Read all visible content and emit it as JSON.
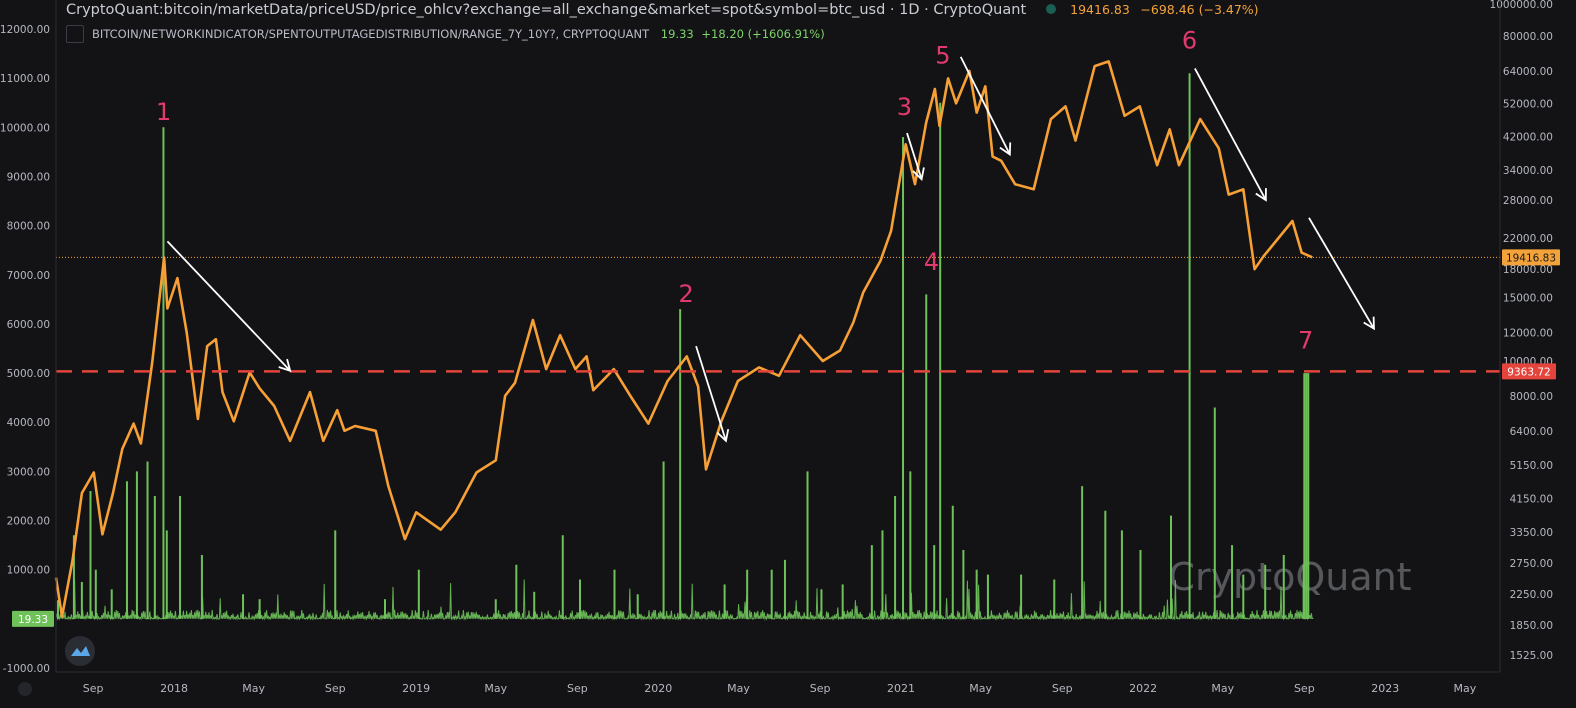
{
  "header": {
    "title": "CryptoQuant:bitcoin/marketData/priceUSD/price_ohlcv?exchange=all_exchange&market=spot&symbol=btc_usd · 1D · CryptoQuant",
    "last_price": "19416.83",
    "change": "−698.46 (−3.47%)",
    "indicator_name": "BITCOIN/NETWORKINDICATOR/SPENTOUTPUTAGEDISTRIBUTION/RANGE_7Y_10Y?, CRYPTOQUANT",
    "indicator_value": "19.33",
    "indicator_change": "+18.20 (+1606.91%)"
  },
  "watermark": "CryptoQuant",
  "colors": {
    "background": "#131316",
    "price_line": "#f7a035",
    "indicator": "#6fc25a",
    "annotation": "#e23a6c",
    "dashed_level": "#e5443c",
    "arrows": "#ffffff",
    "dotted_price": "#f4a33a"
  },
  "chart_data": {
    "type": "line",
    "title": "",
    "x_axis": {
      "tick_labels": [
        "Sep",
        "2018",
        "May",
        "Sep",
        "2019",
        "May",
        "Sep",
        "2020",
        "May",
        "Sep",
        "2021",
        "May",
        "Sep",
        "2022",
        "May",
        "Sep",
        "2023",
        "May"
      ],
      "tick_dates": [
        "2017-09-01",
        "2018-01-01",
        "2018-05-01",
        "2018-09-01",
        "2019-01-01",
        "2019-05-01",
        "2019-09-01",
        "2020-01-01",
        "2020-05-01",
        "2020-09-01",
        "2021-01-01",
        "2021-05-01",
        "2021-09-01",
        "2022-01-01",
        "2022-05-01",
        "2022-09-01",
        "2023-01-01",
        "2023-05-01"
      ],
      "range": [
        "2017-07-07",
        "2023-06-23"
      ]
    },
    "left_axis": {
      "ticks": [
        "12000.00",
        "11000.00",
        "10000.00",
        "9000.00",
        "8000.00",
        "7000.00",
        "6000.00",
        "5000.00",
        "4000.00",
        "3000.00",
        "2000.00",
        "1000.00",
        "-1000.00"
      ],
      "range": [
        -1000,
        12000
      ],
      "current_label": "19.33"
    },
    "right_axis": {
      "scale": "log",
      "ticks": [
        "1000000.00",
        "80000.00",
        "64000.00",
        "52000.00",
        "42000.00",
        "34000.00",
        "28000.00",
        "22000.00",
        "18000.00",
        "15000.00",
        "12000.00",
        "10000.00",
        "8000.00",
        "6400.00",
        "5150.00",
        "4150.00",
        "3350.00",
        "2750.00",
        "2250.00",
        "1850.00",
        "1525.00"
      ],
      "price_label": "19416.83",
      "level_label": "9363.72"
    },
    "series": [
      {
        "name": "btc_usd",
        "axis": "right",
        "points": [
          [
            "2017-07-07",
            2500
          ],
          [
            "2017-07-16",
            1950
          ],
          [
            "2017-08-01",
            2800
          ],
          [
            "2017-08-15",
            4300
          ],
          [
            "2017-09-02",
            4900
          ],
          [
            "2017-09-15",
            3300
          ],
          [
            "2017-10-01",
            4300
          ],
          [
            "2017-10-15",
            5700
          ],
          [
            "2017-11-01",
            6700
          ],
          [
            "2017-11-12",
            5900
          ],
          [
            "2017-11-29",
            9900
          ],
          [
            "2017-12-17",
            19400
          ],
          [
            "2017-12-22",
            14000
          ],
          [
            "2018-01-06",
            17000
          ],
          [
            "2018-01-20",
            12000
          ],
          [
            "2018-02-06",
            6900
          ],
          [
            "2018-02-20",
            11000
          ],
          [
            "2018-03-05",
            11500
          ],
          [
            "2018-03-15",
            8200
          ],
          [
            "2018-04-01",
            6800
          ],
          [
            "2018-04-25",
            9300
          ],
          [
            "2018-05-10",
            8400
          ],
          [
            "2018-06-01",
            7500
          ],
          [
            "2018-06-25",
            6000
          ],
          [
            "2018-07-25",
            8200
          ],
          [
            "2018-08-14",
            6000
          ],
          [
            "2018-09-04",
            7300
          ],
          [
            "2018-09-15",
            6400
          ],
          [
            "2018-10-01",
            6600
          ],
          [
            "2018-11-01",
            6400
          ],
          [
            "2018-11-20",
            4500
          ],
          [
            "2018-12-15",
            3200
          ],
          [
            "2019-01-01",
            3800
          ],
          [
            "2019-02-07",
            3400
          ],
          [
            "2019-03-01",
            3800
          ],
          [
            "2019-04-02",
            4900
          ],
          [
            "2019-05-01",
            5300
          ],
          [
            "2019-05-15",
            8000
          ],
          [
            "2019-05-30",
            8700
          ],
          [
            "2019-06-26",
            13000
          ],
          [
            "2019-07-16",
            9500
          ],
          [
            "2019-08-06",
            11800
          ],
          [
            "2019-08-29",
            9500
          ],
          [
            "2019-09-15",
            10300
          ],
          [
            "2019-09-25",
            8300
          ],
          [
            "2019-10-26",
            9500
          ],
          [
            "2019-11-20",
            8000
          ],
          [
            "2019-12-17",
            6700
          ],
          [
            "2020-01-15",
            8800
          ],
          [
            "2020-02-13",
            10300
          ],
          [
            "2020-03-01",
            8500
          ],
          [
            "2020-03-13",
            5000
          ],
          [
            "2020-04-05",
            6800
          ],
          [
            "2020-04-30",
            8800
          ],
          [
            "2020-06-01",
            9600
          ],
          [
            "2020-07-01",
            9100
          ],
          [
            "2020-08-02",
            11800
          ],
          [
            "2020-09-05",
            10000
          ],
          [
            "2020-10-01",
            10700
          ],
          [
            "2020-10-21",
            12800
          ],
          [
            "2020-11-05",
            15500
          ],
          [
            "2020-12-01",
            19000
          ],
          [
            "2020-12-17",
            23000
          ],
          [
            "2021-01-08",
            40000
          ],
          [
            "2021-01-22",
            31000
          ],
          [
            "2021-02-08",
            46000
          ],
          [
            "2021-02-21",
            57000
          ],
          [
            "2021-02-28",
            45000
          ],
          [
            "2021-03-13",
            61000
          ],
          [
            "2021-03-25",
            52000
          ],
          [
            "2021-04-14",
            64000
          ],
          [
            "2021-04-25",
            49000
          ],
          [
            "2021-05-08",
            58000
          ],
          [
            "2021-05-19",
            37000
          ],
          [
            "2021-06-01",
            36000
          ],
          [
            "2021-06-22",
            31000
          ],
          [
            "2021-07-20",
            30000
          ],
          [
            "2021-08-15",
            47000
          ],
          [
            "2021-09-06",
            51000
          ],
          [
            "2021-09-21",
            41000
          ],
          [
            "2021-10-20",
            66000
          ],
          [
            "2021-11-10",
            68000
          ],
          [
            "2021-12-04",
            48000
          ],
          [
            "2021-12-27",
            51000
          ],
          [
            "2022-01-22",
            35000
          ],
          [
            "2022-02-10",
            44000
          ],
          [
            "2022-02-24",
            35000
          ],
          [
            "2022-03-28",
            47000
          ],
          [
            "2022-04-25",
            39000
          ],
          [
            "2022-05-10",
            29000
          ],
          [
            "2022-06-01",
            30000
          ],
          [
            "2022-06-18",
            18000
          ],
          [
            "2022-07-01",
            19500
          ],
          [
            "2022-08-14",
            24500
          ],
          [
            "2022-08-28",
            20000
          ],
          [
            "2022-09-13",
            19416.83
          ]
        ]
      },
      {
        "name": "RANGE_7Y_10Y",
        "axis": "left",
        "spikes": [
          [
            "2017-07-10",
            380
          ],
          [
            "2017-08-03",
            1700
          ],
          [
            "2017-08-15",
            750
          ],
          [
            "2017-08-28",
            2600
          ],
          [
            "2017-09-05",
            1000
          ],
          [
            "2017-09-29",
            600
          ],
          [
            "2017-10-22",
            2800
          ],
          [
            "2017-11-06",
            3000
          ],
          [
            "2017-11-22",
            3200
          ],
          [
            "2017-12-03",
            2500
          ],
          [
            "2017-12-16",
            10000
          ],
          [
            "2017-12-21",
            1800
          ],
          [
            "2018-01-10",
            2500
          ],
          [
            "2018-02-12",
            1300
          ],
          [
            "2018-04-15",
            500
          ],
          [
            "2018-05-10",
            400
          ],
          [
            "2018-09-01",
            1800
          ],
          [
            "2018-11-15",
            400
          ],
          [
            "2019-01-05",
            1000
          ],
          [
            "2019-05-01",
            400
          ],
          [
            "2019-06-01",
            1100
          ],
          [
            "2019-06-28",
            550
          ],
          [
            "2019-08-10",
            1700
          ],
          [
            "2019-09-05",
            800
          ],
          [
            "2019-10-27",
            1000
          ],
          [
            "2019-12-01",
            500
          ],
          [
            "2020-01-09",
            3200
          ],
          [
            "2020-02-03",
            6300
          ],
          [
            "2020-04-10",
            700
          ],
          [
            "2020-05-14",
            1000
          ],
          [
            "2020-06-20",
            1000
          ],
          [
            "2020-07-10",
            1200
          ],
          [
            "2020-08-13",
            3000
          ],
          [
            "2020-09-03",
            600
          ],
          [
            "2020-10-05",
            700
          ],
          [
            "2020-11-18",
            1500
          ],
          [
            "2020-12-04",
            1800
          ],
          [
            "2020-12-23",
            2500
          ],
          [
            "2021-01-04",
            9800
          ],
          [
            "2021-01-15",
            3000
          ],
          [
            "2021-02-08",
            6600
          ],
          [
            "2021-02-20",
            1500
          ],
          [
            "2021-03-01",
            10500
          ],
          [
            "2021-03-20",
            2300
          ],
          [
            "2021-04-05",
            1400
          ],
          [
            "2021-04-25",
            1000
          ],
          [
            "2021-05-12",
            900
          ],
          [
            "2021-07-01",
            900
          ],
          [
            "2021-08-20",
            800
          ],
          [
            "2021-10-01",
            2700
          ],
          [
            "2021-11-05",
            2200
          ],
          [
            "2021-11-30",
            1800
          ],
          [
            "2021-12-28",
            1400
          ],
          [
            "2022-02-12",
            2100
          ],
          [
            "2022-03-12",
            11100
          ],
          [
            "2022-04-19",
            4300
          ],
          [
            "2022-05-15",
            1500
          ],
          [
            "2022-06-01",
            900
          ],
          [
            "2022-07-04",
            1100
          ],
          [
            "2022-08-01",
            1300
          ],
          [
            "2022-08-31",
            1100
          ],
          [
            "2022-09-01",
            5000
          ],
          [
            "2022-09-04",
            5000
          ],
          [
            "2022-09-07",
            5000
          ],
          [
            "2022-09-13",
            19.33
          ]
        ]
      }
    ],
    "reference_lines": [
      {
        "style": "dotted",
        "axis": "right",
        "value": 19416.83
      },
      {
        "style": "dashed",
        "axis": "right",
        "value": 9363.72
      }
    ],
    "annotations": [
      {
        "text": "1",
        "date": "2017-12-16",
        "y_left": 10150
      },
      {
        "text": "2",
        "date": "2020-02-12",
        "y_left": 6450
      },
      {
        "text": "3",
        "date": "2021-01-06",
        "y_left": 10250
      },
      {
        "text": "4",
        "date": "2021-02-16",
        "y_left": 7100
      },
      {
        "text": "5",
        "date": "2021-03-05",
        "y_left": 11300
      },
      {
        "text": "6",
        "date": "2022-03-12",
        "y_left": 11600
      },
      {
        "text": "7",
        "date": "2022-09-03",
        "y_left": 5500
      }
    ],
    "trend_arrows": [
      {
        "from": [
          "2017-12-22",
          21500
        ],
        "to": [
          "2018-06-25",
          9400
        ]
      },
      {
        "from": [
          "2020-02-27",
          11000
        ],
        "to": [
          "2020-04-12",
          6000
        ]
      },
      {
        "from": [
          "2021-01-10",
          43000
        ],
        "to": [
          "2021-02-01",
          32000
        ]
      },
      {
        "from": [
          "2021-04-01",
          70000
        ],
        "to": [
          "2021-06-14",
          37500
        ]
      },
      {
        "from": [
          "2022-03-20",
          65000
        ],
        "to": [
          "2022-07-05",
          28000
        ]
      },
      {
        "from": [
          "2022-09-08",
          25000
        ],
        "to": [
          "2022-12-15",
          12300
        ]
      }
    ]
  }
}
